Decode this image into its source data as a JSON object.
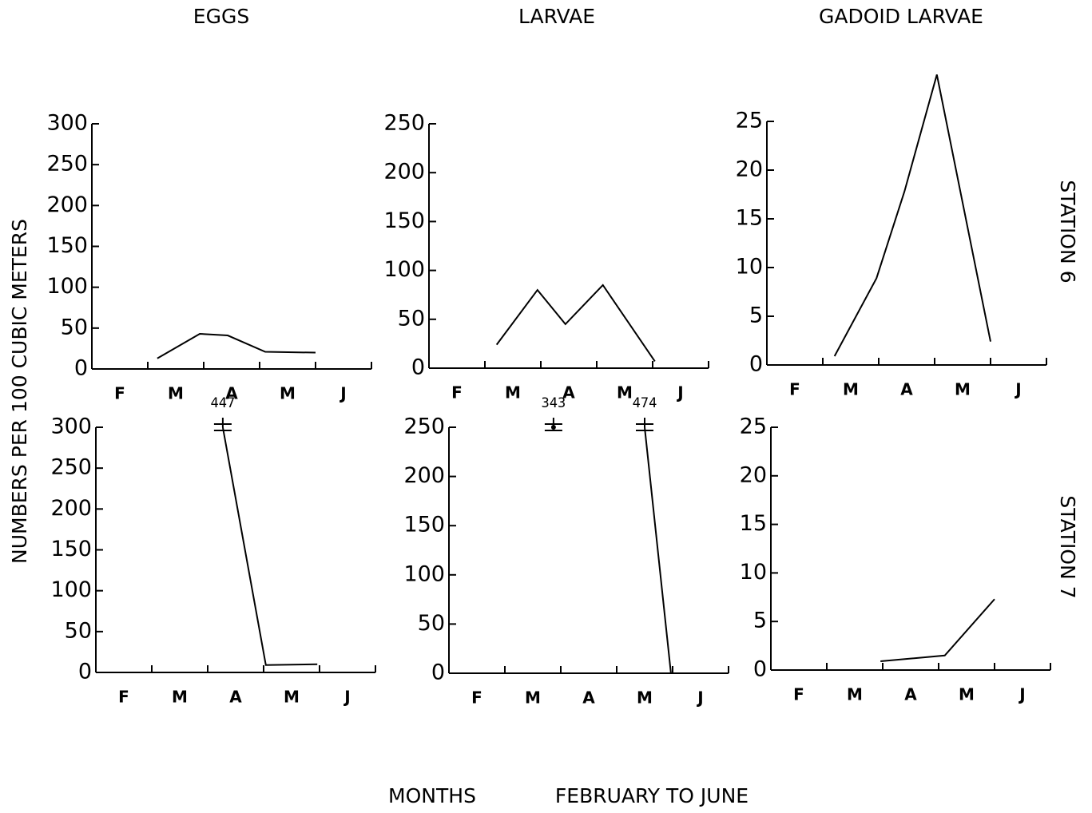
{
  "column_titles": [
    "EGGS",
    "LARVAE",
    "GADOID LARVAE"
  ],
  "row_labels": [
    "STATION 6",
    "STATION 7"
  ],
  "ylabel": "NUMBERS PER 100 CUBIC METERS",
  "xlabel": [
    "MONTHS",
    "FEBRUARY TO JUNE"
  ],
  "chart_data": [
    {
      "type": "line",
      "x": [
        1.17,
        1.93,
        2.43,
        3.1,
        4.0
      ],
      "values": [
        13,
        43,
        41,
        21,
        20
      ],
      "color": "#000000",
      "xlim": [
        0,
        5
      ],
      "xticks": [
        {
          "value": 0.5,
          "label": "F"
        },
        {
          "value": 1.5,
          "label": "M"
        },
        {
          "value": 2.5,
          "label": "A"
        },
        {
          "value": 3.5,
          "label": "M"
        },
        {
          "value": 4.5,
          "label": "J"
        }
      ],
      "ylim": [
        0,
        300
      ],
      "yticks": [
        0,
        50,
        100,
        150,
        200,
        250,
        300
      ]
    },
    {
      "type": "line",
      "x": [
        1.21,
        1.94,
        2.44,
        3.11,
        4.04
      ],
      "values": [
        24,
        80,
        45,
        85,
        7
      ],
      "color": "#000000",
      "xlim": [
        0,
        5
      ],
      "xticks": [
        {
          "value": 0.5,
          "label": "F"
        },
        {
          "value": 1.5,
          "label": "M"
        },
        {
          "value": 2.5,
          "label": "A"
        },
        {
          "value": 3.5,
          "label": "M"
        },
        {
          "value": 4.5,
          "label": "J"
        }
      ],
      "ylim": [
        0,
        250
      ],
      "yticks": [
        0,
        50,
        100,
        150,
        200,
        250
      ]
    },
    {
      "type": "line",
      "x": [
        1.21,
        1.96,
        2.46,
        3.04,
        4.0
      ],
      "values": [
        0.9,
        8.9,
        17.8,
        29.8,
        2.4
      ],
      "color": "#000000",
      "xlim": [
        0,
        5
      ],
      "xticks": [
        {
          "value": 0.5,
          "label": "F"
        },
        {
          "value": 1.5,
          "label": "M"
        },
        {
          "value": 2.5,
          "label": "A"
        },
        {
          "value": 3.5,
          "label": "M"
        },
        {
          "value": 4.5,
          "label": "J"
        }
      ],
      "ylim": [
        0,
        25
      ],
      "yticks": [
        0,
        5,
        10,
        15,
        20,
        25
      ]
    },
    {
      "type": "line",
      "x": [
        2.27,
        3.04,
        3.96
      ],
      "values": [
        447,
        9,
        10
      ],
      "value_labels": [
        "447",
        null,
        null
      ],
      "color": "#000000",
      "xlim": [
        0,
        5
      ],
      "xticks": [
        {
          "value": 0.5,
          "label": "F"
        },
        {
          "value": 1.5,
          "label": "M"
        },
        {
          "value": 2.5,
          "label": "A"
        },
        {
          "value": 3.5,
          "label": "M"
        },
        {
          "value": 4.5,
          "label": "J"
        }
      ],
      "ylim": [
        0,
        300
      ],
      "yticks": [
        0,
        50,
        100,
        150,
        200,
        250,
        300
      ]
    },
    {
      "type": "line",
      "x": [
        1.87,
        null,
        3.5,
        3.97
      ],
      "values": [
        343,
        null,
        474,
        0
      ],
      "value_labels": [
        "343",
        null,
        "474",
        null
      ],
      "color": "#000000",
      "xlim": [
        0,
        5
      ],
      "xticks": [
        {
          "value": 0.5,
          "label": "F"
        },
        {
          "value": 1.5,
          "label": "M"
        },
        {
          "value": 2.5,
          "label": "A"
        },
        {
          "value": 3.5,
          "label": "M"
        },
        {
          "value": 4.5,
          "label": "J"
        }
      ],
      "ylim": [
        0,
        250
      ],
      "yticks": [
        0,
        50,
        100,
        150,
        200,
        250
      ]
    },
    {
      "type": "line",
      "x": [
        1.96,
        3.11,
        4.0
      ],
      "values": [
        0.9,
        1.5,
        7.3
      ],
      "color": "#000000",
      "xlim": [
        0,
        5
      ],
      "xticks": [
        {
          "value": 0.5,
          "label": "F"
        },
        {
          "value": 1.5,
          "label": "M"
        },
        {
          "value": 2.5,
          "label": "A"
        },
        {
          "value": 3.5,
          "label": "M"
        },
        {
          "value": 4.5,
          "label": "J"
        }
      ],
      "ylim": [
        0,
        25
      ],
      "yticks": [
        0,
        5,
        10,
        15,
        20,
        25
      ]
    }
  ]
}
